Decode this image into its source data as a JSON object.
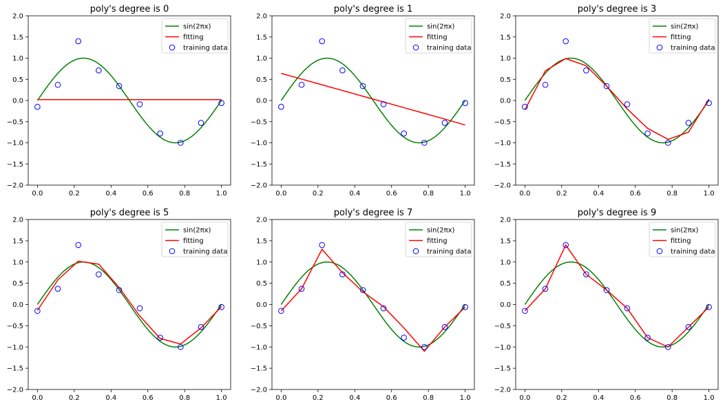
{
  "chart_data": [
    {
      "type": "line",
      "title": "poly's degree is 0",
      "xlim": [
        -0.05,
        1.05
      ],
      "ylim": [
        -2.0,
        2.0
      ],
      "xticks": [
        "0.0",
        "0.2",
        "0.4",
        "0.6",
        "0.8",
        "1.0"
      ],
      "yticks": [
        "2.0",
        "1.5",
        "1.0",
        "0.5",
        "0.0",
        "−0.5",
        "−1.0",
        "−1.5",
        "−2.0"
      ],
      "legend": [
        "sin(2πx)",
        "fitting",
        "training data"
      ],
      "legend_position": "top-right",
      "grid": false,
      "colors": {
        "true": "#008000",
        "fit": "#ff0000",
        "data": "#0000ff"
      },
      "training_data": {
        "x": [
          0.0,
          0.111,
          0.222,
          0.333,
          0.444,
          0.556,
          0.667,
          0.778,
          0.889,
          1.0
        ],
        "y": [
          -0.15,
          0.37,
          1.4,
          0.71,
          0.34,
          -0.09,
          -0.78,
          -1.0,
          -0.53,
          -0.06
        ]
      },
      "fitting": {
        "x": [
          0.0,
          0.111,
          0.222,
          0.333,
          0.444,
          0.556,
          0.667,
          0.778,
          0.889,
          1.0
        ],
        "y": [
          0.02,
          0.02,
          0.02,
          0.02,
          0.02,
          0.02,
          0.02,
          0.02,
          0.02,
          0.02
        ]
      }
    },
    {
      "type": "line",
      "title": "poly's degree is 1",
      "xlim": [
        -0.05,
        1.05
      ],
      "ylim": [
        -2.0,
        2.0
      ],
      "xticks": [
        "0.0",
        "0.2",
        "0.4",
        "0.6",
        "0.8",
        "1.0"
      ],
      "yticks": [
        "2.0",
        "1.5",
        "1.0",
        "0.5",
        "0.0",
        "−0.5",
        "−1.0",
        "−1.5",
        "−2.0"
      ],
      "legend": [
        "sin(2πx)",
        "fitting",
        "training data"
      ],
      "legend_position": "top-right",
      "grid": false,
      "colors": {
        "true": "#008000",
        "fit": "#ff0000",
        "data": "#0000ff"
      },
      "training_data": {
        "x": [
          0.0,
          0.111,
          0.222,
          0.333,
          0.444,
          0.556,
          0.667,
          0.778,
          0.889,
          1.0
        ],
        "y": [
          -0.15,
          0.37,
          1.4,
          0.71,
          0.34,
          -0.09,
          -0.78,
          -1.0,
          -0.53,
          -0.06
        ]
      },
      "fitting": {
        "x": [
          0.0,
          0.111,
          0.222,
          0.333,
          0.444,
          0.556,
          0.667,
          0.778,
          0.889,
          1.0
        ],
        "y": [
          0.64,
          0.505,
          0.37,
          0.235,
          0.1,
          -0.035,
          -0.17,
          -0.305,
          -0.44,
          -0.58
        ]
      }
    },
    {
      "type": "line",
      "title": "poly's degree is 3",
      "xlim": [
        -0.05,
        1.05
      ],
      "ylim": [
        -2.0,
        2.0
      ],
      "xticks": [
        "0.0",
        "0.2",
        "0.4",
        "0.6",
        "0.8",
        "1.0"
      ],
      "yticks": [
        "2.0",
        "1.5",
        "1.0",
        "0.5",
        "0.0",
        "−0.5",
        "−1.0",
        "−1.5",
        "−2.0"
      ],
      "legend": [
        "sin(2πx)",
        "fitting",
        "training data"
      ],
      "legend_position": "top-right",
      "grid": false,
      "colors": {
        "true": "#008000",
        "fit": "#ff0000",
        "data": "#0000ff"
      },
      "training_data": {
        "x": [
          0.0,
          0.111,
          0.222,
          0.333,
          0.444,
          0.556,
          0.667,
          0.778,
          0.889,
          1.0
        ],
        "y": [
          -0.15,
          0.37,
          1.4,
          0.71,
          0.34,
          -0.09,
          -0.78,
          -1.0,
          -0.53,
          -0.06
        ]
      },
      "fitting": {
        "x": [
          0.0,
          0.111,
          0.222,
          0.333,
          0.444,
          0.556,
          0.667,
          0.778,
          0.889,
          1.0
        ],
        "y": [
          -0.22,
          0.7,
          0.99,
          0.82,
          0.34,
          -0.2,
          -0.66,
          -0.92,
          -0.75,
          0.03
        ]
      }
    },
    {
      "type": "line",
      "title": "poly's degree is 5",
      "xlim": [
        -0.05,
        1.05
      ],
      "ylim": [
        -2.0,
        2.0
      ],
      "xticks": [
        "0.0",
        "0.2",
        "0.4",
        "0.6",
        "0.8",
        "1.0"
      ],
      "yticks": [
        "2.0",
        "1.5",
        "1.0",
        "0.5",
        "0.0",
        "−0.5",
        "−1.0",
        "−1.5",
        "−2.0"
      ],
      "legend": [
        "sin(2πx)",
        "fitting",
        "training data"
      ],
      "legend_position": "top-right",
      "grid": false,
      "colors": {
        "true": "#008000",
        "fit": "#ff0000",
        "data": "#0000ff"
      },
      "training_data": {
        "x": [
          0.0,
          0.111,
          0.222,
          0.333,
          0.444,
          0.556,
          0.667,
          0.778,
          0.889,
          1.0
        ],
        "y": [
          -0.15,
          0.37,
          1.4,
          0.71,
          0.34,
          -0.09,
          -0.78,
          -1.0,
          -0.53,
          -0.06
        ]
      },
      "fitting": {
        "x": [
          0.0,
          0.111,
          0.222,
          0.333,
          0.444,
          0.556,
          0.667,
          0.778,
          0.889,
          1.0
        ],
        "y": [
          -0.14,
          0.58,
          1.02,
          0.95,
          0.4,
          -0.27,
          -0.8,
          -0.93,
          -0.55,
          -0.05
        ]
      }
    },
    {
      "type": "line",
      "title": "poly's degree is 7",
      "xlim": [
        -0.05,
        1.05
      ],
      "ylim": [
        -2.0,
        2.0
      ],
      "xticks": [
        "0.0",
        "0.2",
        "0.4",
        "0.6",
        "0.8",
        "1.0"
      ],
      "yticks": [
        "2.0",
        "1.5",
        "1.0",
        "0.5",
        "0.0",
        "−0.5",
        "−1.0",
        "−1.5",
        "−2.0"
      ],
      "legend": [
        "sin(2πx)",
        "fitting",
        "training data"
      ],
      "legend_position": "top-right",
      "grid": false,
      "colors": {
        "true": "#008000",
        "fit": "#ff0000",
        "data": "#0000ff"
      },
      "training_data": {
        "x": [
          0.0,
          0.111,
          0.222,
          0.333,
          0.444,
          0.556,
          0.667,
          0.778,
          0.889,
          1.0
        ],
        "y": [
          -0.15,
          0.37,
          1.4,
          0.71,
          0.34,
          -0.09,
          -0.78,
          -1.0,
          -0.53,
          -0.06
        ]
      },
      "fitting": {
        "x": [
          0.0,
          0.111,
          0.222,
          0.333,
          0.444,
          0.556,
          0.667,
          0.778,
          0.889,
          1.0
        ],
        "y": [
          -0.15,
          0.37,
          1.3,
          0.75,
          0.3,
          -0.05,
          -0.55,
          -1.1,
          -0.53,
          -0.06
        ]
      }
    },
    {
      "type": "line",
      "title": "poly's degree is 9",
      "xlim": [
        -0.05,
        1.05
      ],
      "ylim": [
        -2.0,
        2.0
      ],
      "xticks": [
        "0.0",
        "0.2",
        "0.4",
        "0.6",
        "0.8",
        "1.0"
      ],
      "yticks": [
        "2.0",
        "1.5",
        "1.0",
        "0.5",
        "0.0",
        "−0.5",
        "−1.0",
        "−1.5",
        "−2.0"
      ],
      "legend": [
        "sin(2πx)",
        "fitting",
        "training data"
      ],
      "legend_position": "top-right",
      "grid": false,
      "colors": {
        "true": "#008000",
        "fit": "#ff0000",
        "data": "#0000ff"
      },
      "training_data": {
        "x": [
          0.0,
          0.111,
          0.222,
          0.333,
          0.444,
          0.556,
          0.667,
          0.778,
          0.889,
          1.0
        ],
        "y": [
          -0.15,
          0.37,
          1.4,
          0.71,
          0.34,
          -0.09,
          -0.78,
          -1.0,
          -0.53,
          -0.06
        ]
      },
      "fitting": {
        "x": [
          0.0,
          0.111,
          0.222,
          0.333,
          0.444,
          0.556,
          0.667,
          0.778,
          0.889,
          1.0
        ],
        "y": [
          -0.15,
          0.37,
          1.4,
          0.71,
          0.34,
          -0.09,
          -0.78,
          -1.0,
          -0.53,
          -0.06
        ]
      }
    }
  ]
}
